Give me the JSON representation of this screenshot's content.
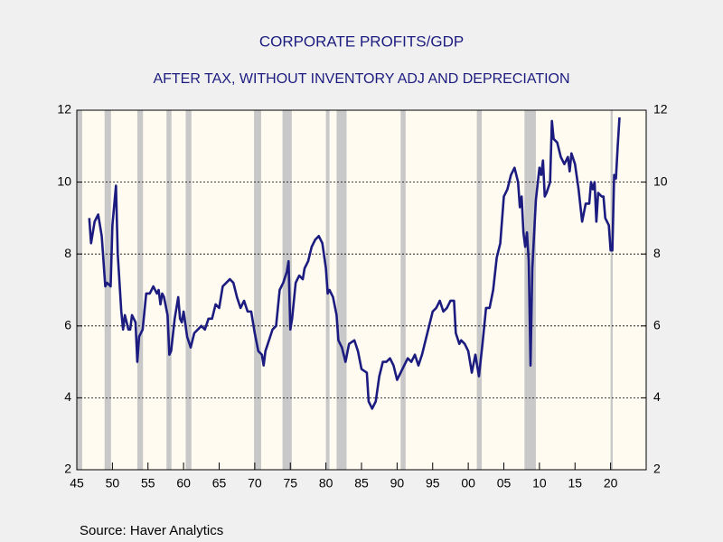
{
  "chart_data": {
    "type": "line",
    "title": "CORPORATE PROFITS/GDP",
    "subtitle": "AFTER TAX, WITHOUT INVENTORY ADJ AND DEPRECIATION",
    "source": "Source:  Haver Analytics",
    "color": "#1c1c80",
    "recession_color": "#c8c8c8",
    "grid": true,
    "xlim": [
      1945,
      2025
    ],
    "ylim": [
      2,
      12
    ],
    "yticks": [
      2,
      4,
      6,
      8,
      10,
      12
    ],
    "xticks": [
      {
        "value": 1945,
        "label": "45"
      },
      {
        "value": 1950,
        "label": "50"
      },
      {
        "value": 1955,
        "label": "55"
      },
      {
        "value": 1960,
        "label": "60"
      },
      {
        "value": 1965,
        "label": "65"
      },
      {
        "value": 1970,
        "label": "70"
      },
      {
        "value": 1975,
        "label": "75"
      },
      {
        "value": 1980,
        "label": "80"
      },
      {
        "value": 1985,
        "label": "85"
      },
      {
        "value": 1990,
        "label": "90"
      },
      {
        "value": 1995,
        "label": "95"
      },
      {
        "value": 2000,
        "label": "00"
      },
      {
        "value": 2005,
        "label": "05"
      },
      {
        "value": 2010,
        "label": "10"
      },
      {
        "value": 2015,
        "label": "15"
      },
      {
        "value": 2020,
        "label": "20"
      }
    ],
    "recessions": [
      [
        1945.0,
        1945.75
      ],
      [
        1948.9,
        1949.8
      ],
      [
        1953.5,
        1954.3
      ],
      [
        1957.6,
        1958.3
      ],
      [
        1960.3,
        1961.1
      ],
      [
        1969.9,
        1970.9
      ],
      [
        1973.9,
        1975.2
      ],
      [
        1980.0,
        1980.5
      ],
      [
        1981.5,
        1982.9
      ],
      [
        1990.5,
        1991.2
      ],
      [
        2001.2,
        2001.9
      ],
      [
        2007.9,
        2009.5
      ],
      [
        2020.0,
        2020.3
      ]
    ],
    "x": [
      1946.75,
      1947.0,
      1947.5,
      1948.0,
      1948.5,
      1949.0,
      1949.25,
      1949.75,
      1950.0,
      1950.5,
      1950.75,
      1951.25,
      1951.5,
      1951.75,
      1952.25,
      1952.5,
      1952.75,
      1953.25,
      1953.5,
      1953.75,
      1954.25,
      1954.75,
      1955.25,
      1955.75,
      1956.25,
      1956.5,
      1956.75,
      1957.0,
      1957.25,
      1957.75,
      1958.0,
      1958.25,
      1958.75,
      1959.25,
      1959.5,
      1959.75,
      1960.0,
      1960.5,
      1961.0,
      1961.5,
      1962.0,
      1962.5,
      1963.0,
      1963.5,
      1964.0,
      1964.5,
      1965.0,
      1965.5,
      1966.0,
      1966.5,
      1967.0,
      1967.5,
      1968.0,
      1968.5,
      1969.0,
      1969.5,
      1970.0,
      1970.5,
      1971.0,
      1971.25,
      1971.5,
      1972.0,
      1972.5,
      1973.0,
      1973.5,
      1974.0,
      1974.5,
      1974.75,
      1975.0,
      1975.25,
      1975.75,
      1976.25,
      1976.75,
      1977.0,
      1977.5,
      1978.0,
      1978.5,
      1979.0,
      1979.5,
      1980.0,
      1980.25,
      1980.5,
      1981.0,
      1981.5,
      1981.75,
      1982.25,
      1982.75,
      1983.25,
      1984.0,
      1984.5,
      1985.0,
      1985.75,
      1986.0,
      1986.5,
      1987.0,
      1987.5,
      1988.0,
      1988.5,
      1989.0,
      1989.5,
      1990.0,
      1990.5,
      1991.0,
      1991.5,
      1992.0,
      1992.5,
      1993.0,
      1993.5,
      1994.0,
      1994.5,
      1995.0,
      1995.5,
      1996.0,
      1996.5,
      1997.0,
      1997.5,
      1998.0,
      1998.25,
      1998.75,
      1999.0,
      1999.5,
      2000.0,
      2000.5,
      2001.0,
      2001.5,
      2002.0,
      2002.5,
      2003.0,
      2003.5,
      2004.0,
      2004.5,
      2005.0,
      2005.5,
      2006.0,
      2006.5,
      2007.0,
      2007.25,
      2007.5,
      2007.75,
      2008.0,
      2008.25,
      2008.5,
      2008.75,
      2009.0,
      2009.5,
      2010.0,
      2010.25,
      2010.5,
      2010.75,
      2011.0,
      2011.5,
      2011.75,
      2012.0,
      2012.5,
      2013.0,
      2013.5,
      2014.0,
      2014.25,
      2014.5,
      2015.0,
      2015.5,
      2016.0,
      2016.5,
      2017.0,
      2017.25,
      2017.5,
      2017.75,
      2018.0,
      2018.25,
      2018.75,
      2019.0,
      2019.25,
      2019.75,
      2020.0,
      2020.25,
      2020.5,
      2020.75,
      2021.0,
      2021.25
    ],
    "values": [
      9.0,
      8.3,
      8.9,
      9.1,
      8.5,
      7.1,
      7.2,
      7.1,
      8.8,
      9.9,
      8.0,
      6.4,
      5.9,
      6.3,
      5.9,
      5.9,
      6.3,
      6.1,
      5.0,
      5.7,
      5.9,
      6.9,
      6.9,
      7.1,
      6.9,
      7.0,
      6.6,
      6.9,
      6.8,
      6.3,
      5.2,
      5.3,
      6.2,
      6.8,
      6.2,
      6.1,
      6.4,
      5.7,
      5.4,
      5.8,
      5.9,
      6.0,
      5.9,
      6.2,
      6.2,
      6.6,
      6.5,
      7.1,
      7.2,
      7.3,
      7.2,
      6.8,
      6.5,
      6.7,
      6.4,
      6.4,
      5.8,
      5.3,
      5.2,
      4.9,
      5.3,
      5.6,
      5.9,
      6.0,
      7.0,
      7.2,
      7.5,
      7.8,
      5.9,
      6.2,
      7.2,
      7.4,
      7.3,
      7.6,
      7.8,
      8.2,
      8.4,
      8.5,
      8.3,
      7.6,
      6.9,
      7.0,
      6.8,
      6.3,
      5.6,
      5.4,
      5.0,
      5.5,
      5.6,
      5.3,
      4.8,
      4.7,
      3.9,
      3.7,
      3.9,
      4.6,
      5.0,
      5.0,
      5.1,
      4.9,
      4.5,
      4.7,
      4.9,
      5.1,
      5.0,
      5.2,
      4.9,
      5.2,
      5.6,
      6.0,
      6.4,
      6.5,
      6.7,
      6.4,
      6.5,
      6.7,
      6.7,
      5.8,
      5.5,
      5.6,
      5.5,
      5.3,
      4.7,
      5.2,
      4.6,
      5.5,
      6.5,
      6.5,
      7.0,
      7.9,
      8.3,
      9.6,
      9.8,
      10.2,
      10.4,
      10.0,
      9.3,
      9.6,
      8.6,
      8.2,
      8.6,
      7.8,
      4.9,
      7.6,
      9.5,
      10.4,
      10.2,
      10.6,
      9.6,
      9.7,
      10.0,
      11.7,
      11.2,
      11.1,
      10.7,
      10.5,
      10.7,
      10.3,
      10.8,
      10.5,
      9.8,
      8.9,
      9.4,
      9.4,
      10.0,
      9.8,
      10.0,
      8.9,
      9.7,
      9.6,
      9.6,
      9.0,
      8.8,
      8.1,
      8.1,
      10.2,
      10.1,
      11.0,
      11.8
    ]
  }
}
